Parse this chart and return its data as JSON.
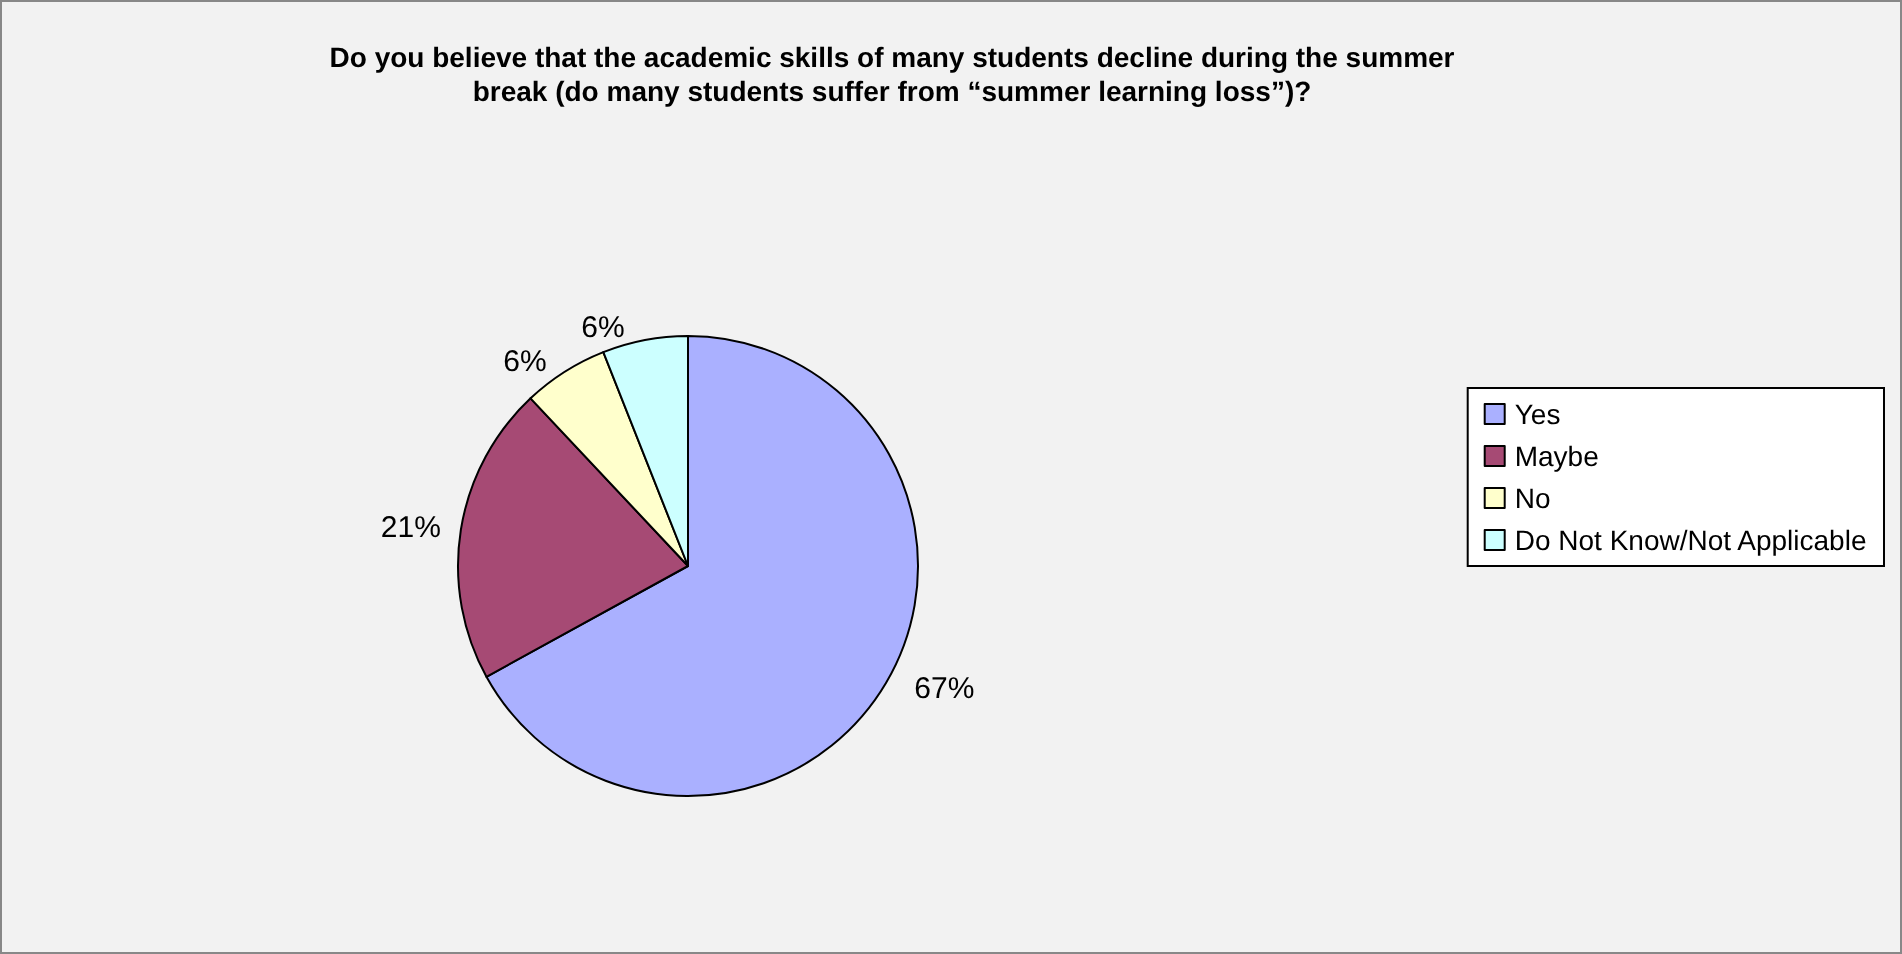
{
  "chart_data": {
    "type": "pie",
    "title": "Do you believe that the academic skills of many students decline during the summer\nbreak (do many students suffer from “summer learning loss”)?",
    "categories": [
      "Yes",
      "Maybe",
      "No",
      "Do Not Know/Not Applicable"
    ],
    "values": [
      67,
      21,
      6,
      6
    ],
    "colors": [
      "#aab0ff",
      "#a64a74",
      "#ffffcc",
      "#ccffff"
    ],
    "value_labels": [
      "67%",
      "21%",
      "6%",
      "6%"
    ],
    "legend": "right"
  }
}
